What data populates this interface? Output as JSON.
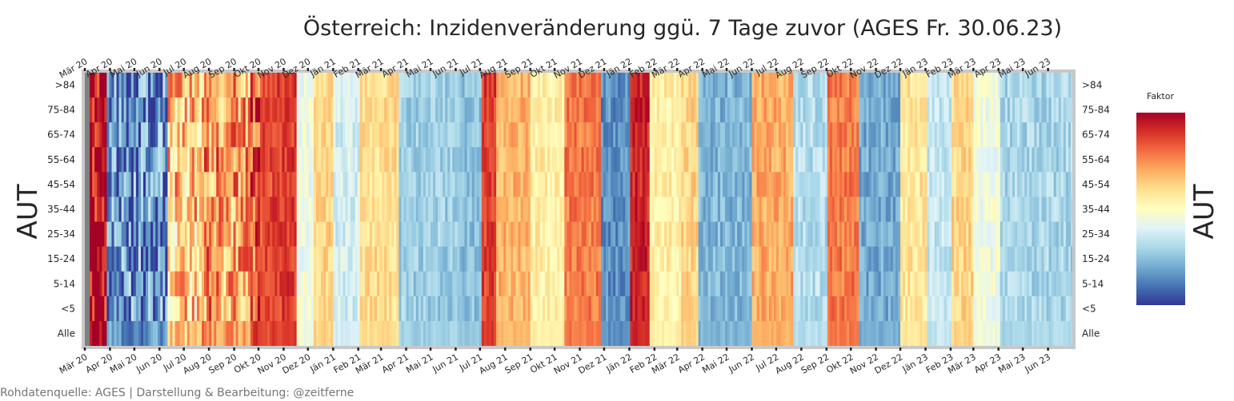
{
  "chart_data": {
    "type": "heatmap",
    "title": "Österreich: Inzidenveränderung ggü. 7 Tage zuvor (AGES Fr. 30.06.23)",
    "ylabel": "AUT",
    "colorbar_label": "AUT",
    "colorbar_title": "Faktor",
    "colormap": "RdYlBu_r",
    "rows": [
      ">84",
      "75-84",
      "65-74",
      "55-64",
      "45-54",
      "35-44",
      "25-34",
      "15-24",
      "5-14",
      "<5",
      "Alle"
    ],
    "x_ticks": [
      "Mär 20",
      "Apr 20",
      "Mai 20",
      "Jun 20",
      "Jul 20",
      "Aug 20",
      "Sep 20",
      "Okt 20",
      "Nov 20",
      "Dez 20",
      "Jän 21",
      "Feb 21",
      "Mär 21",
      "Apr 21",
      "Mai 21",
      "Jun 21",
      "Jul 21",
      "Aug 21",
      "Sep 21",
      "Okt 21",
      "Nov 21",
      "Dez 21",
      "Jän 22",
      "Feb 22",
      "Mär 22",
      "Apr 22",
      "Mai 22",
      "Jun 22",
      "Jul 22",
      "Aug 22",
      "Sep 22",
      "Okt 22",
      "Nov 22",
      "Dez 22",
      "Jän 23",
      "Feb 23",
      "Mär 23",
      "Apr 23",
      "Mai 23",
      "Jun 23"
    ],
    "x_start": "2020-03-01",
    "x_end": "2023-06-30",
    "period_pattern": [
      {
        "end": "2020-03-04",
        "value": null
      },
      {
        "end": "2020-03-26",
        "value": 1.0
      },
      {
        "end": "2020-06-10",
        "value": 0.15
      },
      {
        "end": "2020-07-20",
        "value": 0.65
      },
      {
        "end": "2020-08-15",
        "value": 0.75
      },
      {
        "end": "2020-09-20",
        "value": 0.72
      },
      {
        "end": "2020-10-15",
        "value": 0.85
      },
      {
        "end": "2020-11-15",
        "value": 0.88
      },
      {
        "end": "2020-12-05",
        "value": 0.45
      },
      {
        "end": "2020-12-31",
        "value": 0.62
      },
      {
        "end": "2021-01-31",
        "value": 0.38
      },
      {
        "end": "2021-03-20",
        "value": 0.6
      },
      {
        "end": "2021-05-31",
        "value": 0.28
      },
      {
        "end": "2021-06-30",
        "value": 0.25
      },
      {
        "end": "2021-07-20",
        "value": 0.88
      },
      {
        "end": "2021-08-31",
        "value": 0.68
      },
      {
        "end": "2021-10-10",
        "value": 0.55
      },
      {
        "end": "2021-11-25",
        "value": 0.78
      },
      {
        "end": "2021-12-31",
        "value": 0.15
      },
      {
        "end": "2022-01-25",
        "value": 0.92
      },
      {
        "end": "2022-03-05",
        "value": 0.55
      },
      {
        "end": "2022-03-25",
        "value": 0.62
      },
      {
        "end": "2022-05-31",
        "value": 0.22
      },
      {
        "end": "2022-07-20",
        "value": 0.7
      },
      {
        "end": "2022-08-31",
        "value": 0.32
      },
      {
        "end": "2022-10-10",
        "value": 0.78
      },
      {
        "end": "2022-11-30",
        "value": 0.2
      },
      {
        "end": "2022-12-31",
        "value": 0.58
      },
      {
        "end": "2023-01-31",
        "value": 0.35
      },
      {
        "end": "2023-02-28",
        "value": 0.62
      },
      {
        "end": "2023-03-31",
        "value": 0.45
      },
      {
        "end": "2023-06-30",
        "value": 0.3
      }
    ],
    "grid": false,
    "colorbar_position": "right"
  },
  "footer": "Rohdatenquelle: AGES | Darstellung & Bearbeitung: @zeitferne"
}
